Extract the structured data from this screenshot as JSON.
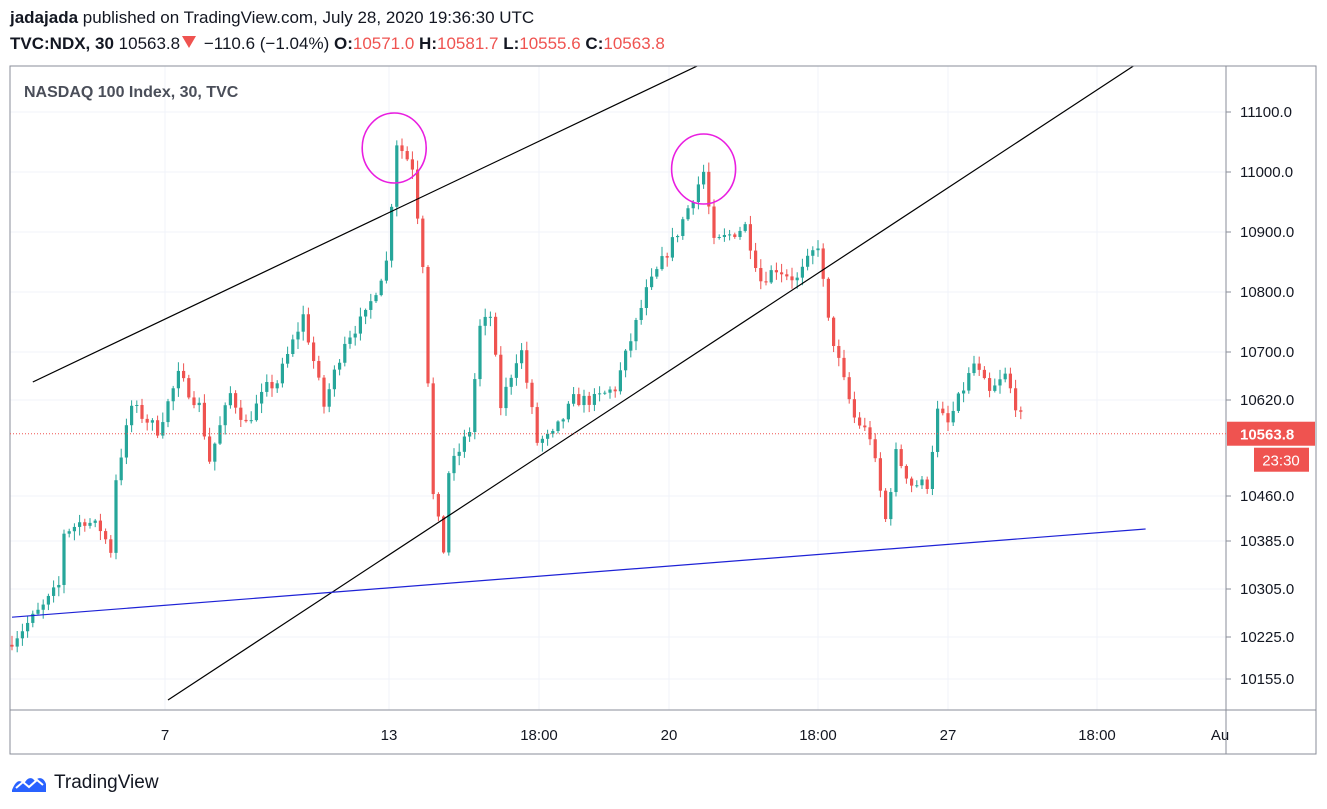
{
  "header": {
    "author": "jadajada",
    "published_text": "published on TradingView.com, July 28, 2020 19:36:30 UTC",
    "symbol": "TVC:NDX, 30",
    "last_price": "10563.8",
    "change": "−110.6 (−1.04%)",
    "open_label": "O:",
    "open": "10571.0",
    "high_label": "H:",
    "high": "10581.7",
    "low_label": "L:",
    "low": "10555.6",
    "close_label": "C:",
    "close": "10563.8"
  },
  "footer": {
    "brand": "TradingView",
    "logo_icon": "tradingview-logo-icon"
  },
  "colors": {
    "up": "#26a69a",
    "down": "#ef5350",
    "trendline": "#000000",
    "support": "#1e22d6",
    "highlight": "#e91ee0"
  },
  "chart_data": {
    "type": "candlestick",
    "title": "NASDAQ 100 Index, 30, TVC",
    "ylim": [
      10120,
      11190
    ],
    "y_ticks": [
      "11100.0",
      "11000.0",
      "10900.0",
      "10800.0",
      "10700.0",
      "10620.0",
      "10460.0",
      "10385.0",
      "10305.0",
      "10225.0",
      "10155.0"
    ],
    "x_ticks": [
      "7",
      "13",
      "18:00",
      "20",
      "18:00",
      "27",
      "18:00",
      "Au"
    ],
    "last_price_label": "10563.8",
    "countdown_label": "23:30",
    "waypoints": [
      [
        0,
        10220
      ],
      [
        6,
        10275
      ],
      [
        9,
        10310
      ],
      [
        10,
        10400
      ],
      [
        14,
        10420
      ],
      [
        17,
        10405
      ],
      [
        19,
        10370
      ],
      [
        20,
        10490
      ],
      [
        23,
        10610
      ],
      [
        28,
        10570
      ],
      [
        32,
        10660
      ],
      [
        36,
        10610
      ],
      [
        38,
        10520
      ],
      [
        42,
        10630
      ],
      [
        45,
        10580
      ],
      [
        49,
        10640
      ],
      [
        51,
        10650
      ],
      [
        56,
        10760
      ],
      [
        60,
        10610
      ],
      [
        64,
        10720
      ],
      [
        68,
        10760
      ],
      [
        72,
        10850
      ],
      [
        74,
        11050
      ],
      [
        77,
        11010
      ],
      [
        79,
        10850
      ],
      [
        81,
        10460
      ],
      [
        83,
        10370
      ],
      [
        84,
        10500
      ],
      [
        88,
        10570
      ],
      [
        90,
        10740
      ],
      [
        92,
        10760
      ],
      [
        94,
        10610
      ],
      [
        97,
        10690
      ],
      [
        98,
        10700
      ],
      [
        101,
        10550
      ],
      [
        104,
        10560
      ],
      [
        108,
        10620
      ],
      [
        112,
        10620
      ],
      [
        116,
        10640
      ],
      [
        122,
        10800
      ],
      [
        128,
        10900
      ],
      [
        133,
        11000
      ],
      [
        135,
        10880
      ],
      [
        141,
        10910
      ],
      [
        144,
        10820
      ],
      [
        147,
        10840
      ],
      [
        151,
        10820
      ],
      [
        155,
        10880
      ],
      [
        157,
        10750
      ],
      [
        160,
        10650
      ],
      [
        162,
        10590
      ],
      [
        165,
        10560
      ],
      [
        168,
        10420
      ],
      [
        170,
        10530
      ],
      [
        173,
        10480
      ],
      [
        176,
        10480
      ],
      [
        178,
        10600
      ],
      [
        180,
        10580
      ],
      [
        183,
        10640
      ],
      [
        185,
        10680
      ],
      [
        188,
        10630
      ],
      [
        191,
        10660
      ],
      [
        194,
        10590
      ]
    ],
    "channel_upper": [
      [
        4,
        10650
      ],
      [
        135,
        11190
      ]
    ],
    "channel_lower": [
      [
        30,
        10120
      ],
      [
        218,
        11190
      ]
    ],
    "support_line": [
      [
        0,
        10258
      ],
      [
        218,
        10405
      ]
    ],
    "highlights": [
      {
        "x": 73.5,
        "y": 11040
      },
      {
        "x": 133,
        "y": 11005
      }
    ]
  }
}
